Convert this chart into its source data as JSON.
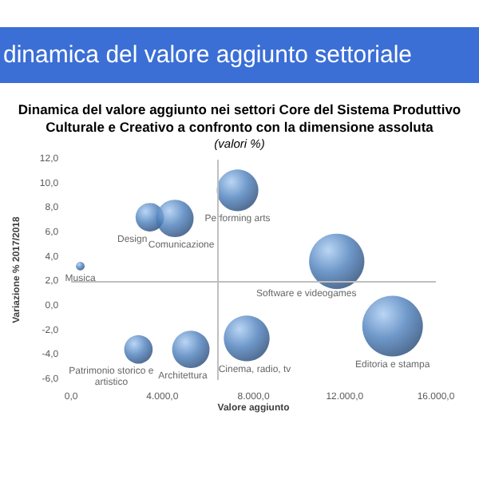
{
  "chart_data": {
    "type": "bubble",
    "title": "dinamica del valore aggiunto settoriale",
    "subtitle": "Dinamica del valore aggiunto nei settori Core del Sistema Produttivo\nCulturale e Creativo a confronto con la dimensione assoluta",
    "xlabel": "Valore aggiunto",
    "ylabel": "Variazione % 2017/2018",
    "series": [
      {
        "name": "Musica",
        "color": "#4a7ebb",
        "x": [
          400
        ],
        "values": [
          3.3
        ],
        "sizes": [
          0.02
        ]
      },
      {
        "name": "Design",
        "color": "#4a7ebb",
        "x": [
          3450
        ],
        "values": [
          7.3
        ],
        "sizes": [
          0.22
        ]
      },
      {
        "name": "Comunicazione",
        "color": "#4a7ebb",
        "x": [
          4550
        ],
        "values": [
          7.2
        ],
        "sizes": [
          0.38
        ]
      },
      {
        "name": "Performing arts",
        "color": "#4a7ebb",
        "x": [
          7300
        ],
        "values": [
          9.5
        ],
        "sizes": [
          0.47
        ]
      },
      {
        "name": "Software e videogames",
        "color": "#4a7ebb",
        "x": [
          11650
        ],
        "values": [
          3.7
        ],
        "sizes": [
          0.83
        ]
      },
      {
        "name": "Editoria e stampa",
        "color": "#4a7ebb",
        "x": [
          14100
        ],
        "values": [
          -1.6
        ],
        "sizes": [
          1
        ]
      },
      {
        "name": "Cinema, radio, tv",
        "color": "#4a7ebb",
        "x": [
          7700
        ],
        "values": [
          -2.6
        ],
        "sizes": [
          0.57
        ]
      },
      {
        "name": "Architettura",
        "color": "#4a7ebb",
        "x": [
          5250
        ],
        "values": [
          -3.5
        ],
        "sizes": [
          0.38
        ]
      },
      {
        "name": "Patrimonio storico e\nartistico",
        "color": "#4a7ebb",
        "x": [
          2950
        ],
        "values": [
          -3.5
        ],
        "sizes": [
          0.22
        ]
      }
    ],
    "xlim": [
      0,
      16000
    ],
    "xticks": [
      {
        "value": 0,
        "label": "0,0"
      },
      {
        "value": 4000,
        "label": "4.000,0"
      },
      {
        "value": 8000,
        "label": "8.000,0"
      },
      {
        "value": 12000,
        "label": "12.000,0"
      },
      {
        "value": 16000,
        "label": "16.000,0"
      }
    ],
    "ylim": [
      -6,
      12
    ],
    "yticks": [
      {
        "value": -6,
        "label": "-6,0"
      },
      {
        "value": -4,
        "label": "-4,0"
      },
      {
        "value": -2,
        "label": "-2,0"
      },
      {
        "value": 0,
        "label": "0,0"
      },
      {
        "value": 2,
        "label": "2,0"
      },
      {
        "value": 4,
        "label": "4,0"
      },
      {
        "value": 6,
        "label": "6,0"
      },
      {
        "value": 8,
        "label": "8,0"
      },
      {
        "value": 10,
        "label": "10,0"
      },
      {
        "value": 12,
        "label": "12,0"
      }
    ],
    "ref_lines": [
      {
        "axis": "y",
        "value": 2,
        "color": "#bfbfbf"
      },
      {
        "axis": "x",
        "value": 6400,
        "color": "#bfbfbf"
      }
    ],
    "annotations": [
      "(valori %)"
    ],
    "grid": false
  }
}
